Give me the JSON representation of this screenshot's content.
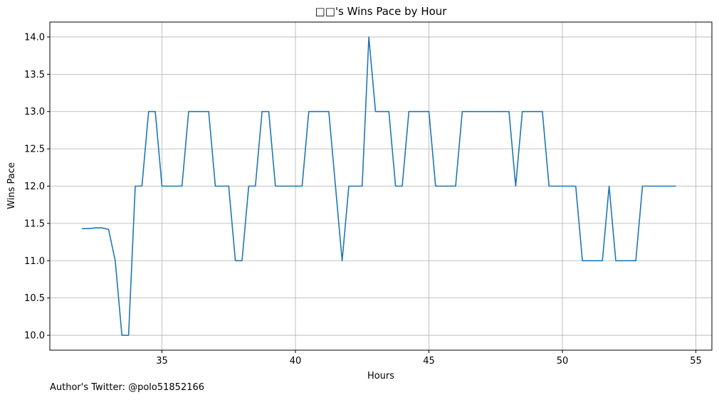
{
  "chart_data": {
    "type": "line",
    "title": "□□'s Wins Pace by Hour",
    "xlabel": "Hours",
    "ylabel": "Wins Pace",
    "xlim": [
      30.8,
      55.6
    ],
    "ylim": [
      9.8,
      14.2
    ],
    "x_ticks": [
      35,
      40,
      45,
      50,
      55
    ],
    "x_tick_labels": [
      "35",
      "40",
      "45",
      "50",
      "55"
    ],
    "y_ticks": [
      10.0,
      10.5,
      11.0,
      11.5,
      12.0,
      12.5,
      13.0,
      13.5,
      14.0
    ],
    "y_tick_labels": [
      "10.0",
      "10.5",
      "11.0",
      "11.5",
      "12.0",
      "12.5",
      "13.0",
      "13.5",
      "14.0"
    ],
    "grid": true,
    "series": [
      {
        "color": "#1f77b4",
        "x": [
          32.0,
          32.25,
          32.5,
          32.75,
          33.0,
          33.25,
          33.5,
          33.75,
          34.0,
          34.25,
          34.5,
          34.75,
          35.0,
          35.25,
          35.5,
          35.75,
          36.0,
          36.25,
          36.5,
          36.75,
          37.0,
          37.25,
          37.5,
          37.75,
          38.0,
          38.25,
          38.5,
          38.75,
          39.0,
          39.25,
          39.5,
          39.75,
          40.0,
          40.25,
          40.5,
          40.75,
          41.0,
          41.25,
          41.5,
          41.75,
          42.0,
          42.25,
          42.5,
          42.75,
          43.0,
          43.25,
          43.5,
          43.75,
          44.0,
          44.25,
          44.5,
          44.75,
          45.0,
          45.25,
          45.5,
          45.75,
          46.0,
          46.25,
          46.5,
          46.75,
          47.0,
          47.25,
          47.5,
          47.75,
          48.0,
          48.25,
          48.5,
          48.75,
          49.0,
          49.25,
          49.5,
          49.75,
          50.0,
          50.25,
          50.5,
          50.75,
          51.0,
          51.25,
          51.5,
          51.75,
          52.0,
          52.25,
          52.5,
          52.75,
          53.0,
          53.25,
          53.5,
          53.75,
          54.0,
          54.25
        ],
        "values": [
          11.43,
          11.43,
          11.44,
          11.44,
          11.42,
          11.0,
          10.0,
          10.0,
          12.0,
          12.0,
          13.0,
          13.0,
          12.0,
          12.0,
          12.0,
          12.0,
          13.0,
          13.0,
          13.0,
          13.0,
          12.0,
          12.0,
          12.0,
          11.0,
          11.0,
          12.0,
          12.0,
          13.0,
          13.0,
          12.0,
          12.0,
          12.0,
          12.0,
          12.0,
          13.0,
          13.0,
          13.0,
          13.0,
          12.0,
          11.0,
          12.0,
          12.0,
          12.0,
          14.0,
          13.0,
          13.0,
          13.0,
          12.0,
          12.0,
          13.0,
          13.0,
          13.0,
          13.0,
          12.0,
          12.0,
          12.0,
          12.0,
          13.0,
          13.0,
          13.0,
          13.0,
          13.0,
          13.0,
          13.0,
          13.0,
          12.0,
          13.0,
          13.0,
          13.0,
          13.0,
          12.0,
          12.0,
          12.0,
          12.0,
          12.0,
          11.0,
          11.0,
          11.0,
          11.0,
          12.0,
          11.0,
          11.0,
          11.0,
          11.0,
          12.0,
          12.0,
          12.0,
          12.0,
          12.0,
          12.0
        ]
      }
    ]
  },
  "footer": {
    "note": "Author's Twitter: @polo51852166"
  }
}
